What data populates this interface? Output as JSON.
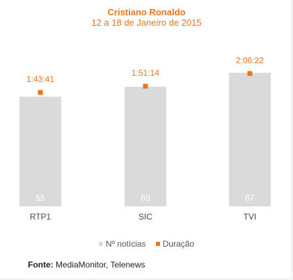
{
  "title": "Cristiano Ronaldo",
  "subtitle": "12 a 18 de Janeiro de 2015",
  "colors": {
    "bars": "#dadada",
    "markers": "#e8761e",
    "title": "#e8761e"
  },
  "legend": [
    {
      "name": "Nº notícias",
      "color": "#dadada"
    },
    {
      "name": "Duração",
      "color": "#e8761e"
    }
  ],
  "source": {
    "label": "Fonte:",
    "text": " MediaMonitor, Telenews"
  },
  "chart_data": {
    "type": "bar",
    "categories": [
      "RTP1",
      "SIC",
      "TVI"
    ],
    "series": [
      {
        "name": "Nº notícias",
        "type": "bar",
        "values": [
          55,
          60,
          67
        ],
        "labels": [
          "55",
          "60",
          "67"
        ]
      },
      {
        "name": "Duração",
        "type": "marker",
        "values_seconds": [
          6221,
          6674,
          7582
        ],
        "labels": [
          "1:43:41",
          "1:51:14",
          "2:06:22"
        ]
      }
    ],
    "legend_position": "bottom",
    "grid": false
  }
}
